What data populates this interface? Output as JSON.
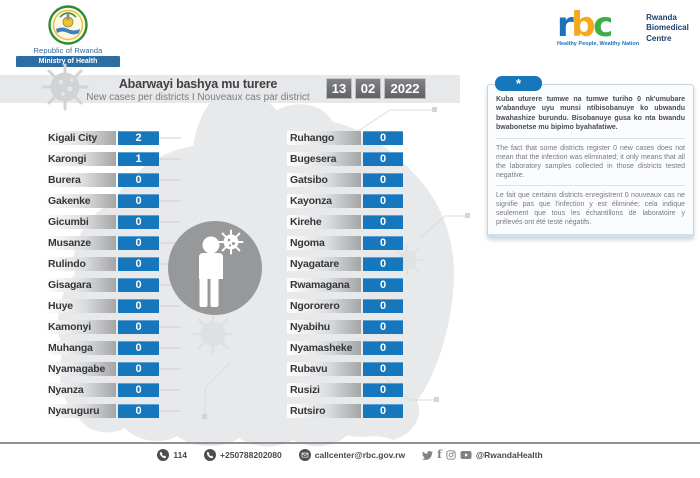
{
  "logos": {
    "moh": {
      "country": "Republic of Rwanda",
      "ministry": "Ministry of Health"
    },
    "rbc": {
      "letter_r": "r",
      "letter_b": "b",
      "letter_c": "c",
      "tagline": "Healthy People, Wealthy Nation",
      "name_line1": "Rwanda",
      "name_line2": "Biomedical",
      "name_line3": "Centre"
    }
  },
  "header": {
    "title": "Abarwayi bashya mu turere",
    "subtitle": "New cases per districts  I  Nouveaux cas par district",
    "date": {
      "day": "13",
      "month": "02",
      "year": "2022"
    }
  },
  "districts": {
    "left": [
      {
        "name": "Kigali City",
        "value": "2"
      },
      {
        "name": "Karongi",
        "value": "1"
      },
      {
        "name": "Burera",
        "value": "0"
      },
      {
        "name": "Gakenke",
        "value": "0"
      },
      {
        "name": "Gicumbi",
        "value": "0"
      },
      {
        "name": "Musanze",
        "value": "0"
      },
      {
        "name": "Rulindo",
        "value": "0"
      },
      {
        "name": "Gisagara",
        "value": "0"
      },
      {
        "name": "Huye",
        "value": "0"
      },
      {
        "name": "Kamonyi",
        "value": "0"
      },
      {
        "name": "Muhanga",
        "value": "0"
      },
      {
        "name": "Nyamagabe",
        "value": "0"
      },
      {
        "name": "Nyanza",
        "value": "0"
      },
      {
        "name": "Nyaruguru",
        "value": "0"
      }
    ],
    "right": [
      {
        "name": "Ruhango",
        "value": "0"
      },
      {
        "name": "Bugesera",
        "value": "0"
      },
      {
        "name": "Gatsibo",
        "value": "0"
      },
      {
        "name": "Kayonza",
        "value": "0"
      },
      {
        "name": "Kirehe",
        "value": "0"
      },
      {
        "name": "Ngoma",
        "value": "0"
      },
      {
        "name": "Nyagatare",
        "value": "0"
      },
      {
        "name": "Rwamagana",
        "value": "0"
      },
      {
        "name": "Ngororero",
        "value": "0"
      },
      {
        "name": "Nyabihu",
        "value": "0"
      },
      {
        "name": "Nyamasheke",
        "value": "0"
      },
      {
        "name": "Rubavu",
        "value": "0"
      },
      {
        "name": "Rusizi",
        "value": "0"
      },
      {
        "name": "Rutsiro",
        "value": "0"
      }
    ]
  },
  "info_box": {
    "tab": "*",
    "note_rw": "Kuba uturere tumwe na tumwe turiho 0 nk'umubare w'abanduye  uyu munsi ntibisobanuye ko ubwandu bwahashize burundu. Bisobanuye gusa ko nta bwandu bwabonetse mu bipimo byahafatiwe.",
    "note_en": "The fact that some districts register 0 new cases does not mean that the infection was eliminated; it only means that all the laboratory samples collected in those districts tested negative.",
    "note_fr": "Le fait que certains districts enregistrent 0 nouveaux cas ne signifie pas que l'infection y est éliminée; cela indique seulement que tous les échantillons de laboratoire y prélevés ont été testé négatifs."
  },
  "footer": {
    "hotline_short": "114",
    "hotline_phone": "+250788202080",
    "email": "callcenter@rbc.gov.rw",
    "social_handle": "@RwandaHealth"
  },
  "colors": {
    "accent_blue": "#1777bd",
    "date_box_gray": "#6d6e70",
    "bar_gray": "#e7e8e9",
    "map_gray": "#e8e9ea",
    "circle_gray": "#97989a"
  }
}
